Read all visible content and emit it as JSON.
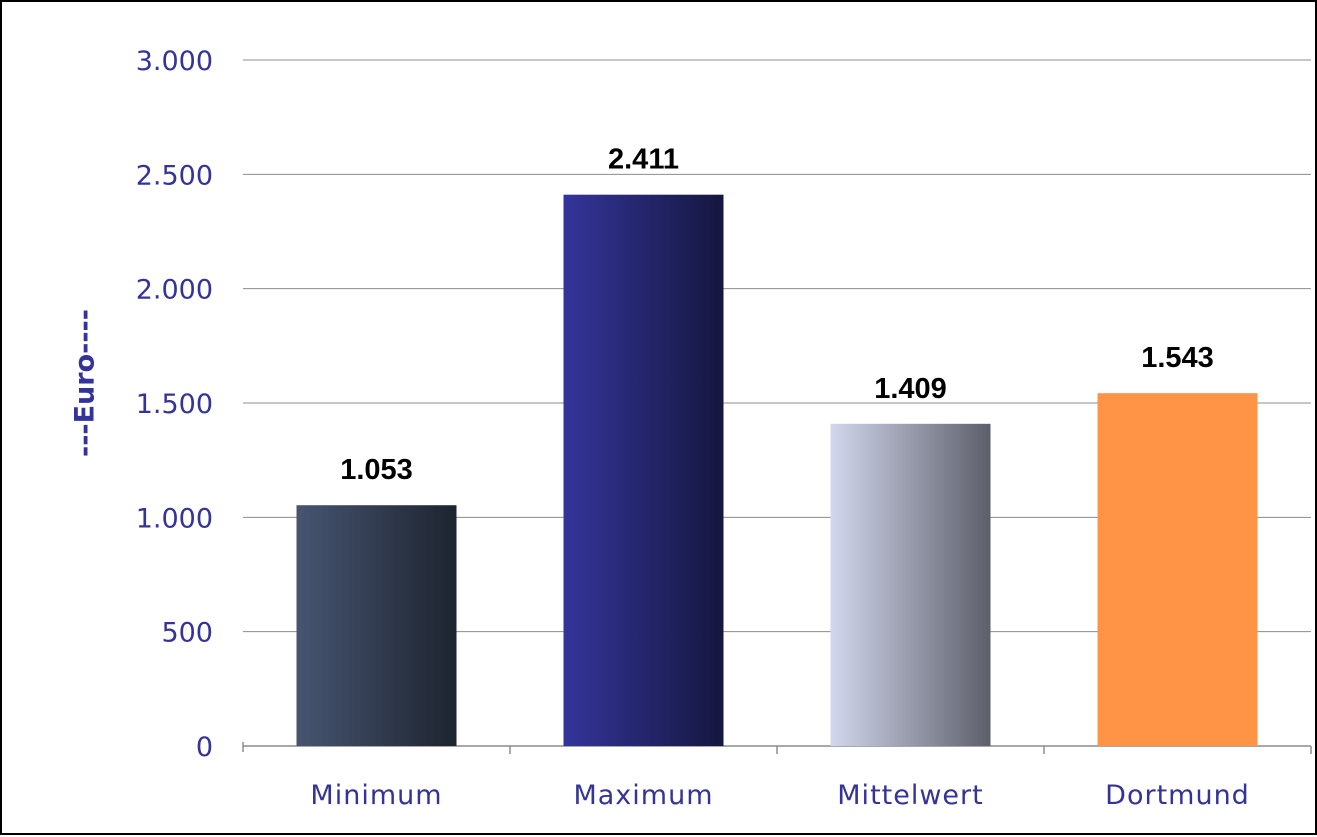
{
  "chart_data": {
    "type": "bar",
    "categories": [
      "Minimum",
      "Maximum",
      "Mittelwert",
      "Dortmund"
    ],
    "values": [
      1053,
      2411,
      1409,
      1543
    ],
    "value_labels": [
      "1.053",
      "2.411",
      "1.409",
      "1.543"
    ],
    "title": "",
    "xlabel": "",
    "ylabel": "---Euro----",
    "ylim": [
      0,
      3000
    ],
    "yticks": [
      0,
      500,
      1000,
      1500,
      2000,
      2500,
      3000
    ],
    "ytick_labels": [
      "0",
      "500",
      "1.000",
      "1.500",
      "2.000",
      "2.500",
      "3.000"
    ],
    "grid": true,
    "legend": "none",
    "bar_colors": [
      [
        "#475571",
        "#1d2430"
      ],
      [
        "#34359a",
        "#15173f"
      ],
      [
        "#d3d7ee",
        "#5c5f6a"
      ],
      [
        "#ff9447",
        "#ff9447"
      ]
    ],
    "text_color": "#333399",
    "label_color": "#000000"
  }
}
